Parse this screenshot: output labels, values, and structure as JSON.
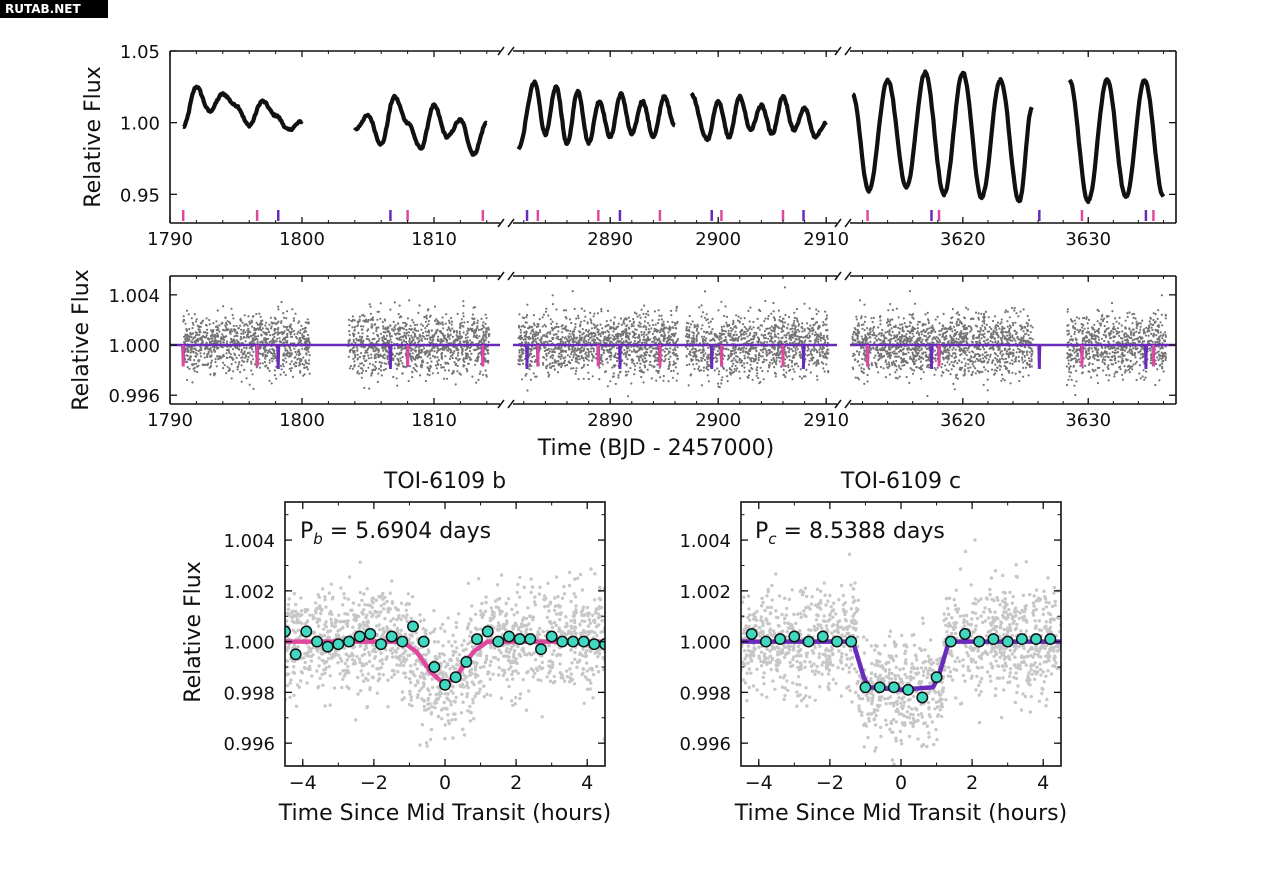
{
  "watermark": "RUTAB.NET",
  "colors": {
    "planet_b": "#e0479e",
    "planet_c": "#6a2bbd",
    "binned_fill": "#40d8c0",
    "raw_points": "#000000"
  },
  "chart_data": [
    {
      "type": "line",
      "panel": "top",
      "title": "",
      "ylabel": "Relative Flux",
      "xlabel": "",
      "ylim": [
        0.93,
        1.05
      ],
      "yticks": [
        "0.95",
        "1.00",
        "1.05"
      ],
      "segments": [
        {
          "xlim": [
            1790,
            1815
          ],
          "xticks": [
            "1790",
            "1800",
            "1810"
          ],
          "gaps": [
            [
              1800.6,
              1803.5
            ]
          ]
        },
        {
          "xlim": [
            2881,
            2911
          ],
          "xticks": [
            "2890",
            "2900",
            "2910"
          ],
          "gaps": [
            [
              2896.3,
              2897.0
            ]
          ]
        },
        {
          "xlim": [
            3611,
            3637
          ],
          "xticks": [
            "3620",
            "3630"
          ],
          "gaps": [
            [
              3625.6,
              3628.3
            ]
          ]
        }
      ],
      "series": [
        {
          "x": [
            1791,
            1792,
            1793,
            1794,
            1795,
            1796,
            1797,
            1798,
            1799,
            1800,
            1804,
            1805,
            1806,
            1807,
            1808,
            1809,
            1810,
            1811,
            1812,
            1813,
            1814
          ],
          "y": [
            0.997,
            1.025,
            1.008,
            1.02,
            1.012,
            0.998,
            1.015,
            1.005,
            0.995,
            1.001,
            0.995,
            1.005,
            0.985,
            1.018,
            1.0,
            0.982,
            1.012,
            0.99,
            1.002,
            0.978,
            1.0
          ]
        },
        {
          "x": [
            2881.5,
            2883,
            2884,
            2885,
            2886,
            2887,
            2888,
            2889,
            2890,
            2891,
            2892,
            2893,
            2894,
            2895,
            2896,
            2897.5,
            2899,
            2900,
            2901,
            2902,
            2903,
            2904,
            2905,
            2906,
            2907,
            2908,
            2909,
            2910
          ],
          "y": [
            0.982,
            1.028,
            0.992,
            1.025,
            0.985,
            1.022,
            0.986,
            1.015,
            0.99,
            1.02,
            0.992,
            1.015,
            0.99,
            1.018,
            0.998,
            1.02,
            0.988,
            1.015,
            0.99,
            1.018,
            0.995,
            1.012,
            0.992,
            1.018,
            0.995,
            1.01,
            0.99,
            1.0
          ]
        },
        {
          "x": [
            3611.2,
            3612.5,
            3614,
            3615.5,
            3617,
            3618.5,
            3620,
            3621.5,
            3623,
            3624.5,
            3625.5,
            3628.5,
            3630,
            3631.5,
            3633,
            3634.5,
            3636
          ],
          "y": [
            1.02,
            0.952,
            1.03,
            0.955,
            1.035,
            0.95,
            1.035,
            0.948,
            1.03,
            0.945,
            1.01,
            1.03,
            0.945,
            1.03,
            0.948,
            1.03,
            0.948
          ]
        }
      ],
      "transits_b": [
        1791.0,
        1796.6,
        1808.0,
        1813.7,
        2883.3,
        2888.9,
        2894.6,
        2900.3,
        2906.0,
        3612.4,
        3618.1,
        3629.5,
        3635.2
      ],
      "transits_c": [
        1798.2,
        1806.7,
        2882.3,
        2890.9,
        2899.4,
        2907.9,
        3617.5,
        3626.1,
        3634.6
      ]
    },
    {
      "type": "scatter",
      "panel": "middle",
      "title": "",
      "ylabel": "Relative Flux",
      "xlabel": "Time (BJD - 2457000)",
      "ylim": [
        0.9953,
        1.0055
      ],
      "yticks": [
        "0.996",
        "1.000",
        "1.004"
      ],
      "segments": [
        {
          "xlim": [
            1790,
            1815
          ],
          "xticks": [
            "1790",
            "1800",
            "1810"
          ]
        },
        {
          "xlim": [
            2881,
            2911
          ],
          "xticks": [
            "2890",
            "2900",
            "2910"
          ]
        },
        {
          "xlim": [
            3611,
            3637
          ],
          "xticks": [
            "3620",
            "3630"
          ]
        }
      ],
      "model_y": 1.0,
      "transit_depth_b": 0.0017,
      "transit_depth_c": 0.0019,
      "raw_scatter_sigma": 0.0012
    },
    {
      "type": "scatter",
      "panel": "bottom-left",
      "title": "TOI-6109 b",
      "annotation": {
        "text_main": "P",
        "text_sub": "b",
        "text_rest": " = 5.6904 days"
      },
      "xlabel": "Time Since Mid Transit (hours)",
      "ylabel": "Relative Flux",
      "xlim": [
        -4.5,
        4.5
      ],
      "ylim": [
        0.9951,
        1.0055
      ],
      "xticks": [
        "−4",
        "−2",
        "0",
        "2",
        "4"
      ],
      "yticks": [
        "0.996",
        "0.998",
        "1.000",
        "1.002",
        "1.004"
      ],
      "binned": {
        "x": [
          -4.5,
          -4.2,
          -3.9,
          -3.6,
          -3.3,
          -3.0,
          -2.7,
          -2.4,
          -2.1,
          -1.8,
          -1.5,
          -1.2,
          -0.9,
          -0.6,
          -0.3,
          0.0,
          0.3,
          0.6,
          0.9,
          1.2,
          1.5,
          1.8,
          2.1,
          2.4,
          2.7,
          3.0,
          3.3,
          3.6,
          3.9,
          4.2,
          4.5
        ],
        "y": [
          1.0004,
          0.9995,
          1.0004,
          1.0,
          0.9998,
          0.9999,
          1.0,
          1.0002,
          1.0003,
          0.9999,
          1.0002,
          1.0,
          1.0006,
          1.0,
          0.999,
          0.9983,
          0.9986,
          0.9992,
          1.0001,
          1.0004,
          1.0,
          1.0002,
          1.0001,
          1.0001,
          0.9997,
          1.0002,
          1.0,
          1.0,
          1.0,
          0.9999,
          0.9999
        ]
      },
      "model": {
        "x": [
          -4.5,
          -1.2,
          -0.8,
          -0.4,
          0.0,
          0.4,
          0.8,
          1.2,
          4.5
        ],
        "y": [
          1.0,
          1.0,
          0.9996,
          0.9988,
          0.9983,
          0.9988,
          0.9996,
          1.0,
          1.0
        ]
      }
    },
    {
      "type": "scatter",
      "panel": "bottom-right",
      "title": "TOI-6109 c",
      "annotation": {
        "text_main": "P",
        "text_sub": "c",
        "text_rest": " = 8.5388 days"
      },
      "xlabel": "Time Since Mid Transit (hours)",
      "ylabel": "",
      "xlim": [
        -4.5,
        4.5
      ],
      "ylim": [
        0.9951,
        1.0055
      ],
      "xticks": [
        "−4",
        "−2",
        "0",
        "2",
        "4"
      ],
      "yticks": [
        "0.996",
        "0.998",
        "1.000",
        "1.002",
        "1.004"
      ],
      "binned": {
        "x": [
          -4.2,
          -3.8,
          -3.4,
          -3.0,
          -2.6,
          -2.2,
          -1.8,
          -1.4,
          -1.0,
          -0.6,
          -0.2,
          0.2,
          0.6,
          1.0,
          1.4,
          1.8,
          2.2,
          2.6,
          3.0,
          3.4,
          3.8,
          4.2
        ],
        "y": [
          1.0003,
          1.0,
          1.0001,
          1.0002,
          1.0,
          1.0002,
          1.0,
          1.0,
          0.9982,
          0.9982,
          0.9982,
          0.9981,
          0.9978,
          0.9986,
          1.0,
          1.0003,
          1.0,
          1.0001,
          1.0,
          1.0001,
          1.0001,
          1.0001
        ]
      },
      "model": {
        "x": [
          -4.5,
          -1.35,
          -1.05,
          -0.9,
          0.0,
          0.9,
          1.05,
          1.35,
          4.5
        ],
        "y": [
          1.0,
          1.0,
          0.9986,
          0.9982,
          0.9981,
          0.9982,
          0.9986,
          1.0,
          1.0
        ]
      }
    }
  ]
}
